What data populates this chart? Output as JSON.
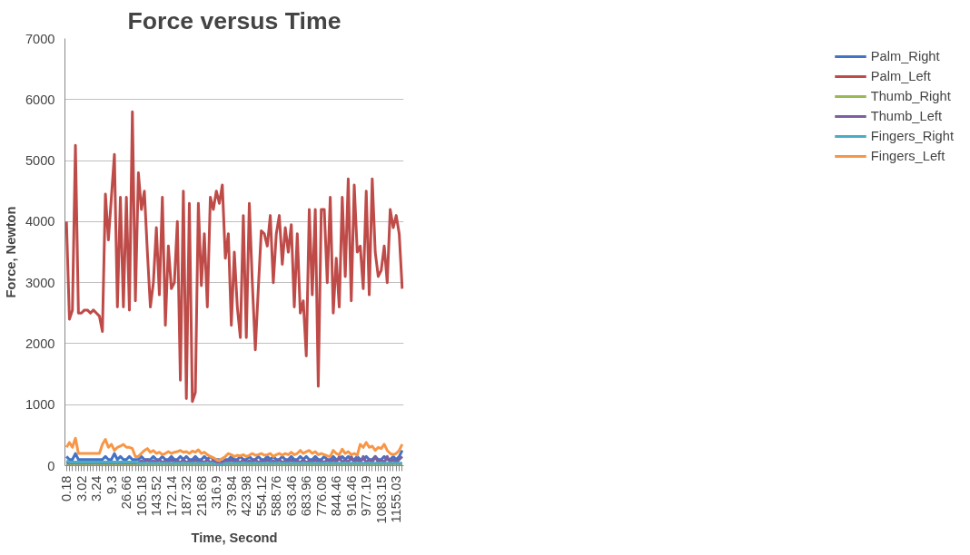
{
  "chart_data": {
    "type": "line",
    "title": "Force versus Time",
    "xlabel": "Time, Second",
    "ylabel": "Force, Newton",
    "categories": [
      "0.18",
      null,
      null,
      null,
      null,
      "3.02",
      null,
      null,
      null,
      null,
      "3.24",
      null,
      null,
      null,
      null,
      "9.3",
      null,
      null,
      null,
      null,
      "26.66",
      null,
      null,
      null,
      null,
      "105.18",
      null,
      null,
      null,
      null,
      "143.52",
      null,
      null,
      null,
      null,
      "172.14",
      null,
      null,
      null,
      null,
      "187.32",
      null,
      null,
      null,
      null,
      "218.68",
      null,
      null,
      null,
      null,
      "316.9",
      null,
      null,
      null,
      null,
      "379.84",
      null,
      null,
      null,
      null,
      "423.98",
      null,
      null,
      null,
      null,
      "554.12",
      null,
      null,
      null,
      null,
      "588.76",
      null,
      null,
      null,
      null,
      "633.46",
      null,
      null,
      null,
      null,
      "683.96",
      null,
      null,
      null,
      null,
      "776.08",
      null,
      null,
      null,
      null,
      "844.46",
      null,
      null,
      null,
      null,
      "916.46",
      null,
      null,
      null,
      null,
      "977.19",
      null,
      null,
      null,
      null,
      "1083.15",
      null,
      null,
      null,
      null,
      "1155.03",
      null,
      null
    ],
    "series": [
      {
        "name": "Palm_Right",
        "color": "#4472c4",
        "values": [
          150,
          100,
          100,
          200,
          100,
          100,
          100,
          100,
          100,
          100,
          100,
          100,
          100,
          150,
          100,
          100,
          200,
          100,
          150,
          100,
          100,
          150,
          100,
          100,
          100,
          150,
          100,
          100,
          100,
          150,
          100,
          100,
          150,
          100,
          100,
          150,
          100,
          100,
          150,
          100,
          150,
          100,
          100,
          150,
          100,
          100,
          150,
          100,
          150,
          100,
          100,
          100,
          50,
          100,
          100,
          150,
          100,
          100,
          150,
          100,
          100,
          150,
          100,
          100,
          150,
          100,
          100,
          150,
          100,
          150,
          100,
          100,
          150,
          100,
          100,
          150,
          100,
          100,
          150,
          100,
          150,
          100,
          100,
          150,
          100,
          100,
          150,
          100,
          100,
          150,
          100,
          100,
          150,
          100,
          150,
          100,
          100,
          150,
          100,
          100,
          150,
          100,
          100,
          150,
          100,
          100,
          150,
          100,
          100,
          150,
          100,
          150,
          250
        ]
      },
      {
        "name": "Palm_Left",
        "color": "#be4b48",
        "values": [
          4000,
          2400,
          2550,
          5250,
          2500,
          2500,
          2550,
          2550,
          2500,
          2550,
          2500,
          2450,
          2200,
          4450,
          3700,
          4400,
          5100,
          2600,
          4400,
          2600,
          4400,
          2550,
          5800,
          2700,
          4800,
          4200,
          4500,
          3500,
          2600,
          3000,
          3900,
          2800,
          4400,
          2300,
          3600,
          2900,
          3000,
          4000,
          1400,
          4500,
          1100,
          4300,
          1050,
          1200,
          4300,
          2950,
          3800,
          2600,
          4400,
          4200,
          4500,
          4300,
          4600,
          3400,
          3800,
          2300,
          3500,
          2600,
          2100,
          4100,
          2100,
          4300,
          3000,
          1900,
          2900,
          3850,
          3800,
          3600,
          4100,
          3000,
          3800,
          4100,
          3300,
          3900,
          3500,
          3950,
          2600,
          3800,
          2500,
          2700,
          1800,
          4200,
          2800,
          4200,
          1300,
          4200,
          4200,
          3000,
          4400,
          2500,
          3400,
          2600,
          4400,
          3100,
          4700,
          2700,
          4600,
          3500,
          3600,
          2900,
          4500,
          2800,
          4700,
          3500,
          3100,
          3200,
          3600,
          3000,
          4200,
          3900,
          4100,
          3800,
          2900
        ]
      },
      {
        "name": "Thumb_Right",
        "color": "#98b954",
        "values": [
          20,
          20,
          20,
          20,
          20,
          20,
          20,
          20,
          20,
          20,
          20,
          20,
          20,
          20,
          20,
          20,
          20,
          20,
          20,
          20,
          20,
          20,
          20,
          20,
          20,
          20,
          20,
          20,
          20,
          20,
          20,
          20,
          20,
          20,
          20,
          20,
          20,
          20,
          20,
          20,
          20,
          20,
          20,
          20,
          20,
          20,
          20,
          20,
          20,
          20,
          20,
          20,
          20,
          20,
          20,
          20,
          20,
          20,
          20,
          20,
          20,
          20,
          20,
          20,
          20,
          20,
          20,
          20,
          20,
          20,
          20,
          20,
          20,
          20,
          20,
          20,
          20,
          20,
          20,
          20,
          20,
          20,
          20,
          20,
          20,
          20,
          20,
          20,
          20,
          20,
          20,
          20,
          20,
          20,
          20,
          20,
          20,
          20,
          20,
          20,
          20,
          20,
          20,
          20,
          20,
          20,
          20,
          20,
          20,
          20,
          20,
          20,
          20
        ]
      },
      {
        "name": "Thumb_Left",
        "color": "#7d5fa0",
        "values": [
          50,
          50,
          50,
          50,
          50,
          50,
          50,
          50,
          50,
          50,
          50,
          50,
          50,
          50,
          50,
          50,
          50,
          50,
          50,
          50,
          50,
          50,
          50,
          50,
          50,
          80,
          50,
          100,
          50,
          80,
          50,
          100,
          50,
          80,
          50,
          100,
          50,
          80,
          50,
          100,
          50,
          80,
          50,
          100,
          50,
          80,
          50,
          100,
          50,
          80,
          50,
          50,
          50,
          80,
          50,
          100,
          50,
          80,
          50,
          100,
          50,
          80,
          50,
          100,
          50,
          80,
          50,
          100,
          50,
          80,
          50,
          100,
          50,
          80,
          50,
          100,
          50,
          80,
          50,
          100,
          50,
          80,
          50,
          100,
          50,
          80,
          50,
          100,
          50,
          100,
          50,
          150,
          50,
          100,
          50,
          150,
          50,
          100,
          50,
          150,
          50,
          100,
          50,
          150,
          50,
          100,
          50,
          150,
          50,
          100,
          50,
          100,
          150
        ]
      },
      {
        "name": "Fingers_Right",
        "color": "#4bacc6",
        "values": [
          80,
          60,
          60,
          60,
          60,
          60,
          60,
          60,
          60,
          60,
          60,
          60,
          60,
          60,
          60,
          60,
          60,
          60,
          60,
          60,
          60,
          60,
          60,
          60,
          40,
          40,
          40,
          40,
          40,
          40,
          40,
          40,
          40,
          40,
          40,
          40,
          40,
          40,
          40,
          40,
          40,
          40,
          40,
          40,
          40,
          40,
          40,
          40,
          40,
          40,
          20,
          20,
          20,
          40,
          40,
          40,
          40,
          40,
          40,
          40,
          40,
          40,
          40,
          40,
          40,
          40,
          40,
          40,
          40,
          40,
          40,
          40,
          40,
          40,
          40,
          40,
          40,
          40,
          40,
          40,
          40,
          40,
          40,
          40,
          40,
          40,
          40,
          40,
          40,
          40,
          40,
          40,
          40,
          40,
          40,
          40,
          40,
          40,
          40,
          40,
          40,
          40,
          40,
          40,
          40,
          40,
          40,
          40,
          40,
          40,
          40,
          40,
          40
        ]
      },
      {
        "name": "Fingers_Left",
        "color": "#f79646",
        "values": [
          300,
          380,
          300,
          450,
          200,
          200,
          200,
          200,
          200,
          200,
          200,
          200,
          350,
          430,
          300,
          350,
          250,
          300,
          320,
          350,
          300,
          300,
          280,
          150,
          150,
          200,
          250,
          280,
          220,
          250,
          200,
          220,
          180,
          200,
          230,
          200,
          220,
          230,
          250,
          220,
          230,
          200,
          240,
          220,
          260,
          200,
          220,
          180,
          150,
          130,
          100,
          80,
          120,
          150,
          200,
          180,
          150,
          170,
          160,
          180,
          150,
          170,
          200,
          170,
          180,
          200,
          170,
          180,
          200,
          150,
          180,
          200,
          170,
          200,
          180,
          220,
          180,
          200,
          250,
          200,
          230,
          250,
          200,
          230,
          180,
          200,
          180,
          160,
          150,
          250,
          200,
          180,
          270,
          200,
          230,
          180,
          200,
          170,
          350,
          300,
          380,
          300,
          320,
          250,
          300,
          280,
          350,
          250,
          200,
          180,
          200,
          250,
          350
        ]
      }
    ],
    "ylim": [
      0,
      7000
    ],
    "yticks": [
      0,
      1000,
      2000,
      3000,
      4000,
      5000,
      6000,
      7000
    ],
    "grid": "y",
    "legend": "right",
    "marker": "none",
    "line_style": "solid"
  }
}
